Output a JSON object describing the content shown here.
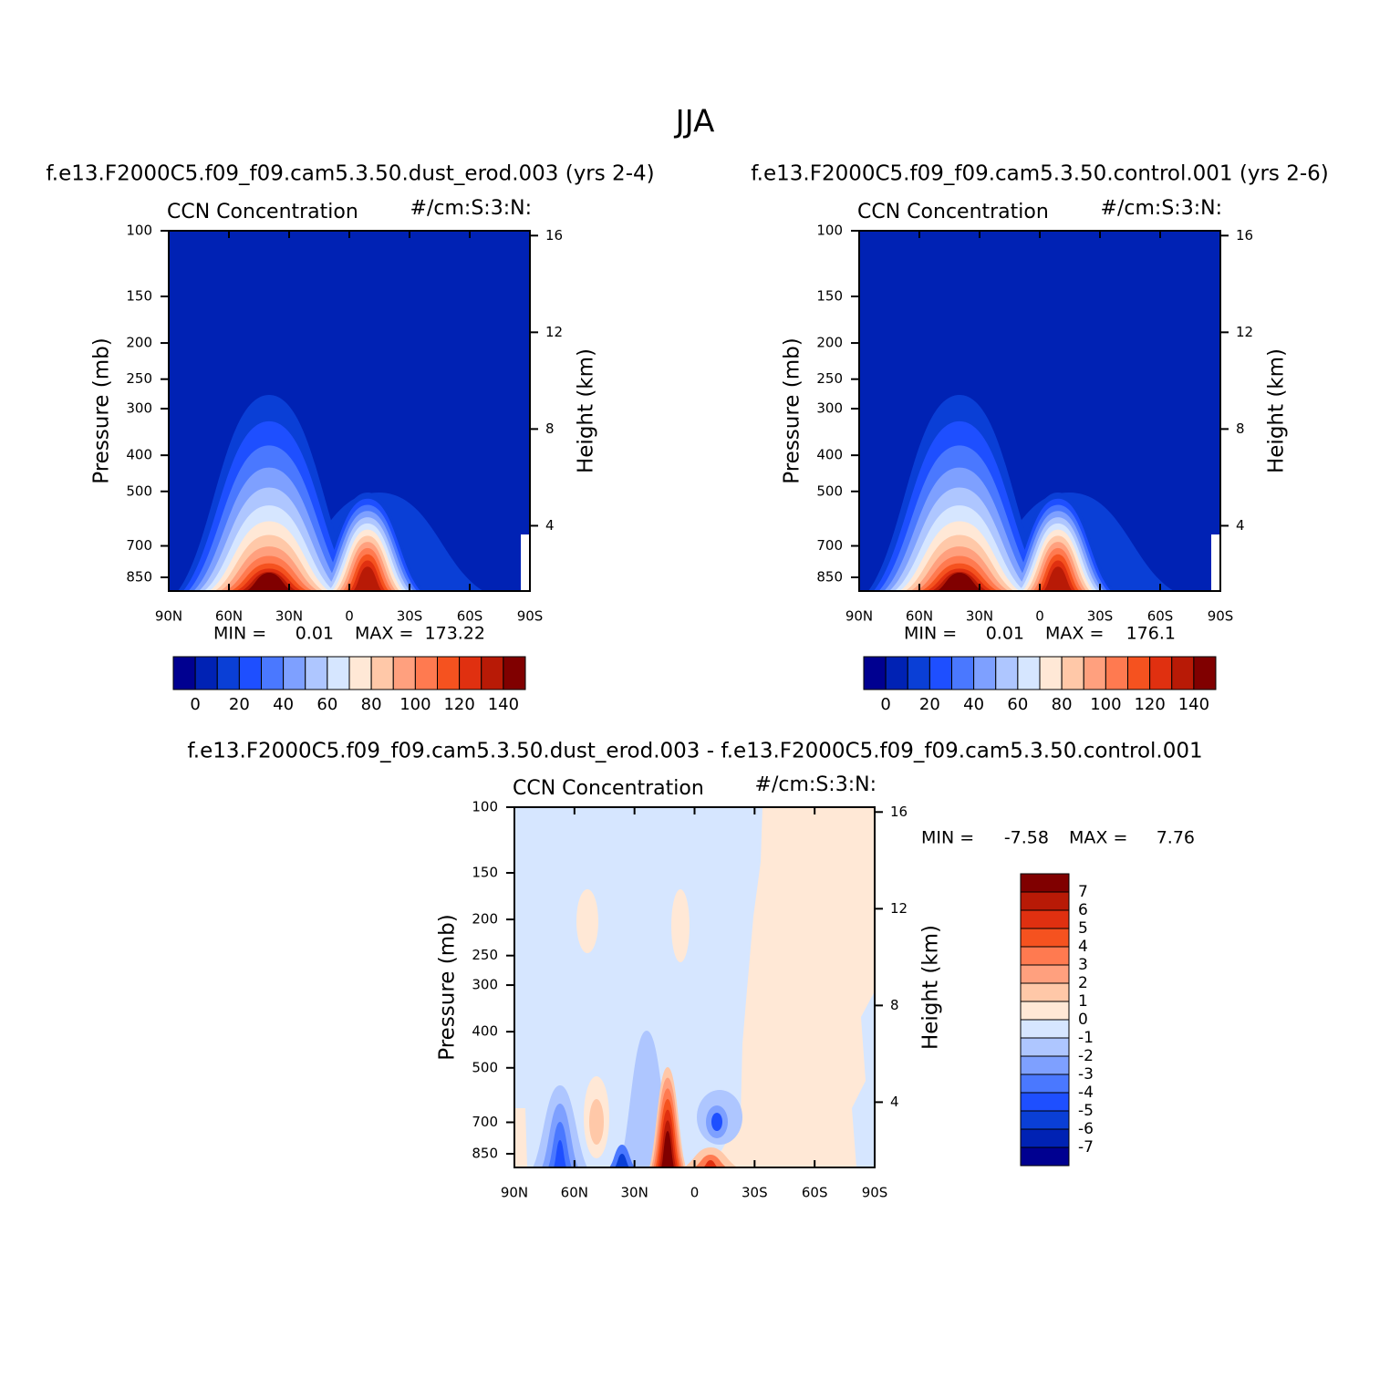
{
  "figure": {
    "title": "JJA"
  },
  "chart_data": [
    {
      "type": "contour",
      "subtitle": "f.e13.F2000C5.f09_f09.cam5.3.50.dust_erod.003 (yrs 2-4)",
      "title": "CCN Concentration",
      "units": "#/cm:S:3:N:",
      "ylabel": "Pressure (mb)",
      "y2label": "Height (km)",
      "xlim": [
        90,
        -90
      ],
      "xticks": [
        {
          "value": 90,
          "label": "90N"
        },
        {
          "value": 60,
          "label": "60N"
        },
        {
          "value": 30,
          "label": "30N"
        },
        0,
        {
          "value": -30,
          "label": "30S"
        },
        {
          "value": -60,
          "label": "60S"
        },
        {
          "value": -90,
          "label": "90S"
        }
      ],
      "ylim": [
        925,
        100
      ],
      "log_y": true,
      "yticks": [
        100,
        150,
        200,
        250,
        300,
        400,
        500,
        700,
        850
      ],
      "y2lim": [
        1.3,
        16.2
      ],
      "y2ticks": [
        4,
        8,
        12,
        16
      ],
      "min_label": "MIN =",
      "min": 0.01,
      "max_label": "MAX =",
      "max": 173.22,
      "colorbar": {
        "orientation": "horizontal",
        "label_every": 2,
        "levels": [
          0,
          10,
          20,
          30,
          40,
          50,
          60,
          70,
          80,
          90,
          100,
          110,
          120,
          130,
          140
        ],
        "colors": [
          "#000090",
          "#0022b4",
          "#0a3fd6",
          "#1e4fff",
          "#4a78ff",
          "#7ea0ff",
          "#aec6ff",
          "#d6e6ff",
          "#ffe8d6",
          "#ffc8a8",
          "#ffa07e",
          "#ff7a50",
          "#f5521f",
          "#e03010",
          "#b81a06",
          "#800000"
        ]
      }
    },
    {
      "type": "contour",
      "subtitle": "f.e13.F2000C5.f09_f09.cam5.3.50.control.001 (yrs 2-6)",
      "title": "CCN Concentration",
      "units": "#/cm:S:3:N:",
      "ylabel": "Pressure (mb)",
      "y2label": "Height (km)",
      "xlim": [
        90,
        -90
      ],
      "xticks": [
        {
          "value": 90,
          "label": "90N"
        },
        {
          "value": 60,
          "label": "60N"
        },
        {
          "value": 30,
          "label": "30N"
        },
        0,
        {
          "value": -30,
          "label": "30S"
        },
        {
          "value": -60,
          "label": "60S"
        },
        {
          "value": -90,
          "label": "90S"
        }
      ],
      "ylim": [
        925,
        100
      ],
      "log_y": true,
      "yticks": [
        100,
        150,
        200,
        250,
        300,
        400,
        500,
        700,
        850
      ],
      "y2lim": [
        1.3,
        16.2
      ],
      "y2ticks": [
        4,
        8,
        12,
        16
      ],
      "min_label": "MIN =",
      "min": 0.01,
      "max_label": "MAX =",
      "max": 176.1,
      "colorbar": {
        "orientation": "horizontal",
        "label_every": 2,
        "levels": [
          0,
          10,
          20,
          30,
          40,
          50,
          60,
          70,
          80,
          90,
          100,
          110,
          120,
          130,
          140
        ],
        "colors": [
          "#000090",
          "#0022b4",
          "#0a3fd6",
          "#1e4fff",
          "#4a78ff",
          "#7ea0ff",
          "#aec6ff",
          "#d6e6ff",
          "#ffe8d6",
          "#ffc8a8",
          "#ffa07e",
          "#ff7a50",
          "#f5521f",
          "#e03010",
          "#b81a06",
          "#800000"
        ]
      }
    },
    {
      "type": "contour",
      "subtitle": "f.e13.F2000C5.f09_f09.cam5.3.50.dust_erod.003 - f.e13.F2000C5.f09_f09.cam5.3.50.control.001",
      "title": "CCN Concentration",
      "units": "#/cm:S:3:N:",
      "ylabel": "Pressure (mb)",
      "y2label": "Height (km)",
      "xlim": [
        90,
        -90
      ],
      "xticks": [
        {
          "value": 90,
          "label": "90N"
        },
        {
          "value": 60,
          "label": "60N"
        },
        {
          "value": 30,
          "label": "30N"
        },
        0,
        {
          "value": -30,
          "label": "30S"
        },
        {
          "value": -60,
          "label": "60S"
        },
        {
          "value": -90,
          "label": "90S"
        }
      ],
      "ylim": [
        925,
        100
      ],
      "log_y": true,
      "yticks": [
        100,
        150,
        200,
        250,
        300,
        400,
        500,
        700,
        850
      ],
      "y2lim": [
        1.3,
        16.2
      ],
      "y2ticks": [
        4,
        8,
        12,
        16
      ],
      "min_label": "MIN =",
      "min": -7.58,
      "max_label": "MAX =",
      "max": 7.76,
      "colorbar": {
        "orientation": "vertical",
        "label_every": 1,
        "levels": [
          -7,
          -6,
          -5,
          -4,
          -3,
          -2,
          -1,
          0,
          1,
          2,
          3,
          4,
          5,
          6,
          7
        ],
        "colors": [
          "#000090",
          "#0022b4",
          "#0a3fd6",
          "#1e4fff",
          "#4a78ff",
          "#7ea0ff",
          "#aec6ff",
          "#d6e6ff",
          "#ffe8d6",
          "#ffc8a8",
          "#ffa07e",
          "#ff7a50",
          "#f5521f",
          "#e03010",
          "#b81a06",
          "#800000"
        ]
      }
    }
  ]
}
